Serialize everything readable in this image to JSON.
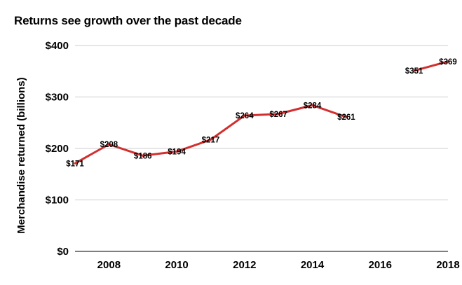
{
  "chart_data": {
    "type": "line",
    "title": "Returns see growth over the past decade",
    "ylabel": "Merchandise returned (billions)",
    "xlabel": "",
    "ylim": [
      0,
      400
    ],
    "xlim": [
      2007,
      2018
    ],
    "y_ticks": [
      {
        "value": 0,
        "label": "$0"
      },
      {
        "value": 100,
        "label": "$100"
      },
      {
        "value": 200,
        "label": "$200"
      },
      {
        "value": 300,
        "label": "$300"
      },
      {
        "value": 400,
        "label": "$400"
      }
    ],
    "x_ticks": [
      {
        "value": 2008,
        "label": "2008"
      },
      {
        "value": 2010,
        "label": "2010"
      },
      {
        "value": 2012,
        "label": "2012"
      },
      {
        "value": 2014,
        "label": "2014"
      },
      {
        "value": 2016,
        "label": "2016"
      },
      {
        "value": 2018,
        "label": "2018"
      }
    ],
    "grid": true,
    "series": [
      {
        "color": "#d32f2f",
        "points": [
          {
            "x": 2007,
            "y": 171,
            "label": "$171"
          },
          {
            "x": 2008,
            "y": 208,
            "label": "$208"
          },
          {
            "x": 2009,
            "y": 186,
            "label": "$186"
          },
          {
            "x": 2010,
            "y": 194,
            "label": "$194"
          },
          {
            "x": 2011,
            "y": 217,
            "label": "$217"
          },
          {
            "x": 2012,
            "y": 264,
            "label": "$264"
          },
          {
            "x": 2013,
            "y": 267,
            "label": "$267"
          },
          {
            "x": 2014,
            "y": 284,
            "label": "$284"
          },
          {
            "x": 2015,
            "y": 261,
            "label": "$261"
          },
          {
            "x": 2016,
            "y": null,
            "label": ""
          },
          {
            "x": 2017,
            "y": 351,
            "label": "$351"
          },
          {
            "x": 2018,
            "y": 369,
            "label": "$369"
          }
        ]
      }
    ]
  }
}
